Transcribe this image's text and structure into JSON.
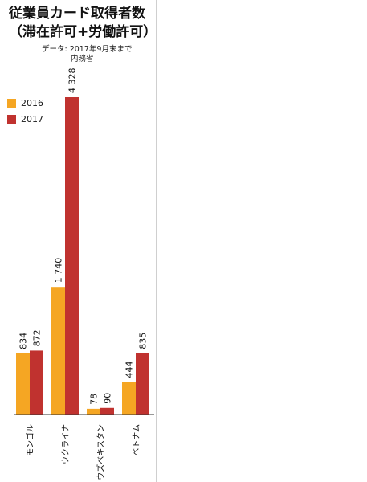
{
  "title": {
    "line1": "従業員カード取得者数",
    "line2": "（滞在許可+労働許可）"
  },
  "source": {
    "line1": "データ: 2017年9月末まで",
    "line2": "内務省"
  },
  "colors": {
    "s2016": "#f5a623",
    "s2017": "#c0322f",
    "axis": "#333333"
  },
  "chart_data": {
    "type": "bar",
    "categories": [
      "モンゴル",
      "ウクライナ",
      "ウズベキスタン",
      "ベトナム"
    ],
    "series": [
      {
        "name": "2016",
        "values": [
          834,
          1740,
          78,
          444
        ],
        "labels": [
          "834",
          "1 740",
          "78",
          "444"
        ]
      },
      {
        "name": "2017",
        "values": [
          872,
          4328,
          90,
          835
        ],
        "labels": [
          "872",
          "4 328",
          "90",
          "835"
        ]
      }
    ],
    "ylim": [
      0,
      4328
    ],
    "legend": "top-left",
    "grid": false
  }
}
